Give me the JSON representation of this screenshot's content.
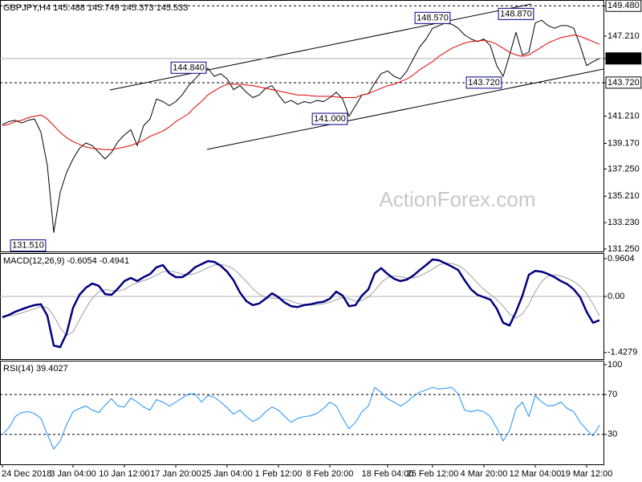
{
  "chart_data": [
    {
      "type": "line",
      "title": "GBPJPY,H4  145.488 145.749 145.373 145.533",
      "watermark": "ActionForex.com",
      "xlim": [
        0,
        93
      ],
      "ylim": [
        131.07,
        149.92
      ],
      "yticks": [
        {
          "value": 149.48,
          "label": "149.480",
          "line": "dashed",
          "box": "outline"
        },
        {
          "value": 147.21,
          "label": "147.210"
        },
        {
          "value": 145.533,
          "line": "solid",
          "box": "filled"
        },
        {
          "value": 143.72,
          "label": "143.720",
          "line": "dashed",
          "box": "outline"
        },
        {
          "value": 141.21,
          "label": "141.210"
        },
        {
          "value": 139.17,
          "label": "139.170"
        },
        {
          "value": 137.25,
          "label": "137.250"
        },
        {
          "value": 135.21,
          "label": "135.210"
        },
        {
          "value": 133.23,
          "label": "133.230"
        },
        {
          "value": 131.25,
          "label": "131.250"
        }
      ],
      "series": [
        {
          "color": "#000000",
          "linewidth": 1,
          "values": [
            140.6,
            140.8,
            140.9,
            140.7,
            140.9,
            141.0,
            140.0,
            137.5,
            132.5,
            135.5,
            137.0,
            138.0,
            138.8,
            139.2,
            139.0,
            138.5,
            138.0,
            138.5,
            139.3,
            139.8,
            140.2,
            139.0,
            140.5,
            141.0,
            142.5,
            142.3,
            142.0,
            142.3,
            142.8,
            143.5,
            144.0,
            144.5,
            144.8,
            144.2,
            144.4,
            144.0,
            143.2,
            143.5,
            143.0,
            142.6,
            142.8,
            143.3,
            143.5,
            142.8,
            142.2,
            142.4,
            142.1,
            142.3,
            142.2,
            142.4,
            142.3,
            142.6,
            143.0,
            142.5,
            141.2,
            142.0,
            142.8,
            142.9,
            143.7,
            144.4,
            144.6,
            144.2,
            144.0,
            144.6,
            145.5,
            146.4,
            147.0,
            147.8,
            148.0,
            148.2,
            148.1,
            147.8,
            147.3,
            147.0,
            146.8,
            147.0,
            146.5,
            145.0,
            144.2,
            145.8,
            147.5,
            145.8,
            146.0,
            148.2,
            148.4,
            148.0,
            147.8,
            148.0,
            148.0,
            147.8,
            146.5,
            145.0,
            145.3,
            145.533
          ]
        },
        {
          "color": "#e00000",
          "linewidth": 1,
          "values": [
            140.5,
            140.6,
            140.8,
            140.9,
            141.1,
            141.2,
            141.3,
            141.0,
            140.5,
            140.0,
            139.6,
            139.3,
            139.1,
            138.9,
            138.8,
            138.75,
            138.7,
            138.7,
            138.8,
            138.9,
            139.0,
            139.2,
            139.4,
            139.7,
            139.9,
            140.1,
            140.4,
            140.8,
            141.1,
            141.4,
            141.9,
            142.3,
            142.8,
            143.1,
            143.4,
            143.6,
            143.6,
            143.6,
            143.55,
            143.5,
            143.4,
            143.3,
            143.2,
            143.1,
            143.0,
            142.9,
            142.8,
            142.8,
            142.75,
            142.7,
            142.7,
            142.7,
            142.65,
            142.6,
            142.6,
            142.6,
            142.8,
            142.9,
            143.1,
            143.3,
            143.5,
            143.6,
            143.8,
            144.0,
            144.3,
            144.7,
            145.0,
            145.3,
            145.7,
            146.0,
            146.3,
            146.5,
            146.7,
            146.8,
            146.85,
            146.9,
            146.8,
            146.6,
            146.3,
            146.0,
            145.8,
            145.7,
            145.8,
            146.1,
            146.4,
            146.7,
            146.9,
            147.1,
            147.2,
            147.3,
            147.2,
            147.0,
            146.8,
            146.6
          ]
        }
      ],
      "annotations": [
        {
          "value": 148.57,
          "label": "148.570",
          "index": 67
        },
        {
          "value": 148.87,
          "label": "148.870",
          "index": 80
        },
        {
          "value": 144.84,
          "label": "144.840",
          "index": 29
        },
        {
          "value": 141.0,
          "label": "141.000",
          "index": 51
        },
        {
          "value": 131.51,
          "label": "131.510",
          "index": 4
        },
        {
          "value": 143.72,
          "label": "143.720",
          "index": 75
        }
      ]
    },
    {
      "type": "line",
      "title": "MACD(12,26,9) -0.6054 -0.4941",
      "xlim": [
        0,
        93
      ],
      "ylim": [
        -1.595,
        1.104
      ],
      "yticks": [
        0.9604,
        {
          "value": 0,
          "label": "0.00",
          "line": "solid"
        },
        -1.4279
      ],
      "series": [
        {
          "color": "#a0a0a0",
          "linewidth": 1,
          "values": [
            -0.5,
            -0.5,
            -0.47,
            -0.42,
            -0.37,
            -0.31,
            -0.26,
            -0.28,
            -0.5,
            -0.8,
            -1.0,
            -0.9,
            -0.6,
            -0.3,
            -0.05,
            0.12,
            0.18,
            0.15,
            0.13,
            0.18,
            0.28,
            0.35,
            0.4,
            0.46,
            0.54,
            0.63,
            0.65,
            0.62,
            0.57,
            0.55,
            0.58,
            0.65,
            0.73,
            0.8,
            0.82,
            0.78,
            0.7,
            0.55,
            0.38,
            0.2,
            0.06,
            -0.03,
            -0.05,
            -0.05,
            -0.07,
            -0.12,
            -0.18,
            -0.21,
            -0.22,
            -0.21,
            -0.19,
            -0.15,
            -0.08,
            -0.03,
            -0.06,
            -0.12,
            -0.1,
            -0.02,
            0.15,
            0.35,
            0.48,
            0.52,
            0.5,
            0.47,
            0.47,
            0.52,
            0.6,
            0.7,
            0.8,
            0.85,
            0.84,
            0.79,
            0.68,
            0.52,
            0.34,
            0.18,
            0.05,
            -0.08,
            -0.25,
            -0.45,
            -0.55,
            -0.45,
            -0.2,
            0.12,
            0.38,
            0.52,
            0.55,
            0.52,
            0.46,
            0.38,
            0.26,
            0.08,
            -0.2,
            -0.4941
          ]
        },
        {
          "color": "#000080",
          "linewidth": 2.5,
          "values": [
            -0.53,
            -0.47,
            -0.39,
            -0.33,
            -0.27,
            -0.22,
            -0.2,
            -0.49,
            -1.25,
            -1.29,
            -0.94,
            -0.29,
            0.04,
            0.22,
            0.33,
            0.27,
            0.06,
            0.04,
            0.2,
            0.39,
            0.47,
            0.39,
            0.49,
            0.57,
            0.74,
            0.8,
            0.59,
            0.49,
            0.49,
            0.59,
            0.74,
            0.82,
            0.9,
            0.88,
            0.78,
            0.63,
            0.41,
            0.1,
            -0.12,
            -0.22,
            -0.18,
            -0.06,
            0.08,
            -0.02,
            -0.16,
            -0.25,
            -0.27,
            -0.22,
            -0.2,
            -0.16,
            -0.14,
            -0.06,
            0.12,
            0.02,
            -0.25,
            -0.22,
            0.02,
            0.18,
            0.59,
            0.72,
            0.57,
            0.45,
            0.39,
            0.43,
            0.53,
            0.67,
            0.8,
            0.94,
            0.92,
            0.84,
            0.76,
            0.67,
            0.41,
            0.18,
            0.04,
            -0.02,
            -0.08,
            -0.31,
            -0.67,
            -0.74,
            -0.39,
            0.02,
            0.55,
            0.65,
            0.63,
            0.57,
            0.49,
            0.39,
            0.31,
            0.18,
            -0.02,
            -0.39,
            -0.67,
            -0.6054
          ]
        }
      ]
    },
    {
      "type": "line",
      "title": "RSI(14) 39.4027",
      "xlim": [
        0,
        93
      ],
      "ylim": [
        0,
        104
      ],
      "yticks": [
        100,
        {
          "value": 70,
          "line": "dashed"
        },
        {
          "value": 30,
          "line": "dashed"
        }
      ],
      "series": [
        {
          "color": "#1e90ff",
          "linewidth": 1,
          "values": [
            30,
            36.5,
            47.9,
            52,
            52.8,
            51,
            46,
            30,
            15.4,
            23.5,
            39.8,
            52.8,
            56,
            58.5,
            54.4,
            52,
            59.3,
            65.8,
            58.5,
            57.6,
            66.6,
            62.5,
            57.6,
            54.4,
            65,
            62.5,
            58.5,
            62.5,
            66.6,
            70.7,
            70.7,
            62.5,
            69,
            67.4,
            62.5,
            56.8,
            50.3,
            54.4,
            47.9,
            43,
            46.3,
            52.8,
            57.6,
            54.4,
            47.9,
            42.2,
            46.3,
            47.9,
            48.7,
            51.1,
            56,
            62.5,
            58.5,
            46.3,
            35.7,
            42.2,
            52.8,
            58.5,
            77.2,
            72.3,
            65.8,
            62.5,
            58.5,
            62.5,
            68.2,
            72.3,
            74.7,
            77.2,
            75.5,
            76.3,
            77.2,
            70.7,
            54.4,
            52.8,
            54.4,
            52.8,
            47.9,
            36.5,
            23.5,
            34.1,
            56,
            62.5,
            47.9,
            69,
            62.5,
            58.5,
            59.3,
            62.5,
            56,
            52.8,
            42.2,
            34.9,
            28.4,
            39.4027
          ]
        }
      ],
      "xticks": [
        {
          "value": 0,
          "label": "24 Dec 2018"
        },
        {
          "value": 11,
          "label": "3 Jan 04:00"
        },
        {
          "value": 19,
          "label": "10 Jan 12:00"
        },
        {
          "value": 27,
          "label": "17 Jan 20:00"
        },
        {
          "value": 35,
          "label": "25 Jan 04:00"
        },
        {
          "value": 43,
          "label": "1 Feb 12:00"
        },
        {
          "value": 51,
          "label": "8 Feb 20:00"
        },
        {
          "value": 60,
          "label": "18 Feb 04:00"
        },
        {
          "value": 67,
          "label": "25 Feb 12:00"
        },
        {
          "value": 75,
          "label": "4 Mar 20:00"
        },
        {
          "value": 83,
          "label": "12 Mar 04:00"
        },
        {
          "value": 91,
          "label": "19 Mar 12:00"
        }
      ]
    }
  ]
}
